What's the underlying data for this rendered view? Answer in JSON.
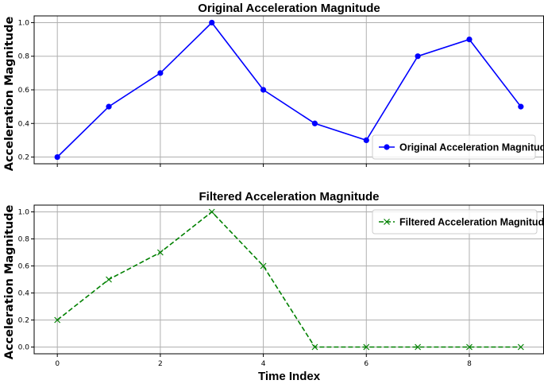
{
  "chart_data": [
    {
      "type": "line",
      "title": "Original Acceleration Magnitude",
      "ylabel": "Acceleration Magnitude",
      "xlabel": "",
      "x": [
        0,
        1,
        2,
        3,
        4,
        5,
        6,
        7,
        8,
        9
      ],
      "series": [
        {
          "name": "Original Acceleration Magnitude",
          "values": [
            0.2,
            0.5,
            0.7,
            1.0,
            0.6,
            0.4,
            0.3,
            0.8,
            0.9,
            0.5
          ],
          "color": "#0000ff",
          "marker": "circle",
          "linestyle": "solid"
        }
      ],
      "xlim": [
        -0.45,
        9.45
      ],
      "ylim": [
        0.16,
        1.04
      ],
      "xticks": [
        0,
        2,
        4,
        6,
        8
      ],
      "xtick_labels_shown": false,
      "yticks": [
        0.2,
        0.4,
        0.6,
        0.8,
        1.0
      ],
      "ytick_labels": [
        "0.2",
        "0.4",
        "0.6",
        "0.8",
        "1.0"
      ],
      "grid": true,
      "legend": "lower-right"
    },
    {
      "type": "line",
      "title": "Filtered Acceleration Magnitude",
      "ylabel": "Acceleration Magnitude",
      "xlabel": "Time Index",
      "x": [
        0,
        1,
        2,
        3,
        4,
        5,
        6,
        7,
        8,
        9
      ],
      "series": [
        {
          "name": "Filtered Acceleration Magnitude",
          "values": [
            0.2,
            0.5,
            0.7,
            1.0,
            0.6,
            0.0,
            0.0,
            0.0,
            0.0,
            0.0
          ],
          "color": "#008000",
          "marker": "x",
          "linestyle": "dashed"
        }
      ],
      "xlim": [
        -0.45,
        9.45
      ],
      "ylim": [
        -0.05,
        1.05
      ],
      "xticks": [
        0,
        2,
        4,
        6,
        8
      ],
      "xtick_labels": [
        "0",
        "2",
        "4",
        "6",
        "8"
      ],
      "xtick_labels_shown": true,
      "yticks": [
        0.0,
        0.2,
        0.4,
        0.6,
        0.8,
        1.0
      ],
      "ytick_labels": [
        "0.0",
        "0.2",
        "0.4",
        "0.6",
        "0.8",
        "1.0"
      ],
      "grid": true,
      "legend": "top-right"
    }
  ]
}
